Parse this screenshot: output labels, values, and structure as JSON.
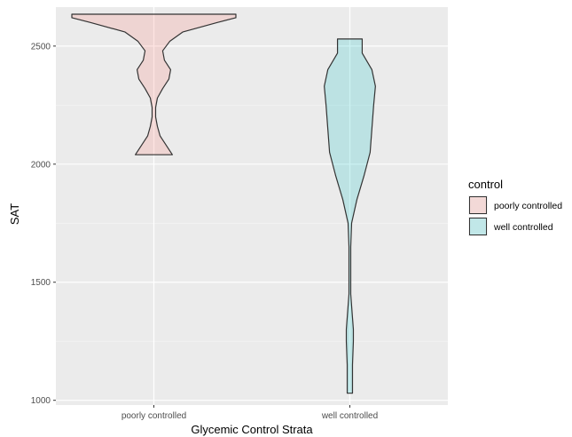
{
  "chart_data": {
    "type": "violin",
    "xlabel": "Glycemic Control Strata",
    "ylabel": "SAT",
    "categories": [
      "poorly controlled",
      "well controlled"
    ],
    "y_ticks": [
      1000,
      1500,
      2000,
      2500
    ],
    "y_tick_labels": [
      "1000",
      "1500",
      "2000",
      "2500"
    ],
    "ylim": [
      980,
      2665
    ],
    "grid": true,
    "legend": {
      "title": "control",
      "placement": "right",
      "entries": [
        {
          "label": "poorly controlled",
          "color": "#F8766D"
        },
        {
          "label": "well controlled",
          "color": "#00BFC4"
        }
      ]
    },
    "series": [
      {
        "category": "poorly controlled",
        "color": "#F8766D",
        "y_min": 2040,
        "y_max": 2635,
        "density_profile": [
          {
            "y": 2040,
            "w": 0.21
          },
          {
            "y": 2080,
            "w": 0.14
          },
          {
            "y": 2120,
            "w": 0.07
          },
          {
            "y": 2160,
            "w": 0.04
          },
          {
            "y": 2200,
            "w": 0.02
          },
          {
            "y": 2240,
            "w": 0.02
          },
          {
            "y": 2280,
            "w": 0.04
          },
          {
            "y": 2320,
            "w": 0.1
          },
          {
            "y": 2360,
            "w": 0.17
          },
          {
            "y": 2400,
            "w": 0.19
          },
          {
            "y": 2440,
            "w": 0.12
          },
          {
            "y": 2480,
            "w": 0.1
          },
          {
            "y": 2520,
            "w": 0.18
          },
          {
            "y": 2560,
            "w": 0.33
          },
          {
            "y": 2600,
            "w": 0.72
          },
          {
            "y": 2620,
            "w": 0.93
          },
          {
            "y": 2635,
            "w": 0.93
          }
        ]
      },
      {
        "category": "well controlled",
        "color": "#00BFC4",
        "y_min": 1030,
        "y_max": 2530,
        "density_profile": [
          {
            "y": 1030,
            "w": 0.03
          },
          {
            "y": 1060,
            "w": 0.03
          },
          {
            "y": 1150,
            "w": 0.03
          },
          {
            "y": 1250,
            "w": 0.04
          },
          {
            "y": 1300,
            "w": 0.04
          },
          {
            "y": 1350,
            "w": 0.03
          },
          {
            "y": 1450,
            "w": 0.01
          },
          {
            "y": 1550,
            "w": 0.01
          },
          {
            "y": 1650,
            "w": 0.01
          },
          {
            "y": 1750,
            "w": 0.02
          },
          {
            "y": 1850,
            "w": 0.08
          },
          {
            "y": 1950,
            "w": 0.16
          },
          {
            "y": 2050,
            "w": 0.23
          },
          {
            "y": 2150,
            "w": 0.25
          },
          {
            "y": 2250,
            "w": 0.27
          },
          {
            "y": 2330,
            "w": 0.29
          },
          {
            "y": 2400,
            "w": 0.25
          },
          {
            "y": 2470,
            "w": 0.14
          },
          {
            "y": 2530,
            "w": 0.14
          }
        ]
      }
    ]
  }
}
